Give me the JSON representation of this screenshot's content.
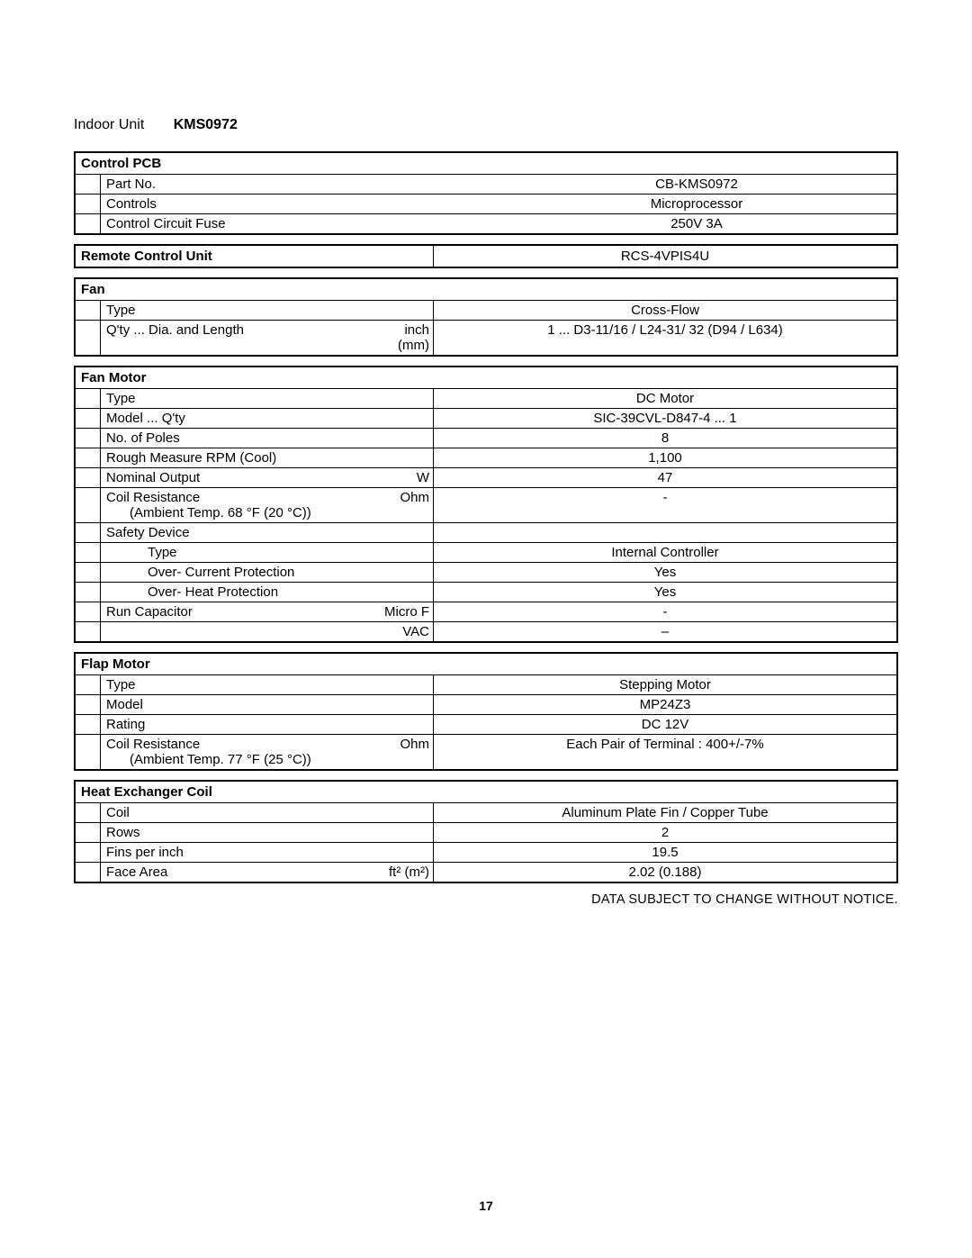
{
  "header": {
    "unit_label": "Indoor Unit",
    "model": "KMS0972"
  },
  "sections": {
    "control_pcb": {
      "title": "Control  PCB",
      "rows": [
        {
          "label": "Part No.",
          "unit": "",
          "value": "CB-KMS0972"
        },
        {
          "label": "Controls",
          "unit": "",
          "value": "Microprocessor"
        },
        {
          "label": "Control Circuit Fuse",
          "unit": "",
          "value": "250V 3A"
        }
      ]
    },
    "remote": {
      "title": "Remote  Control  Unit",
      "value": "RCS-4VPIS4U"
    },
    "fan": {
      "title": "Fan",
      "rows": [
        {
          "label": "Type",
          "unit": "",
          "value": "Cross-Flow"
        },
        {
          "label": "Q'ty ... Dia. and Length",
          "unit": "inch (mm)",
          "value": "1 ... D3-11/16 /  L24-31/ 32 (D94 / L634)"
        }
      ]
    },
    "fan_motor": {
      "title": "Fan  Motor",
      "rows": [
        {
          "label": "Type",
          "unit": "",
          "value": "DC Motor"
        },
        {
          "label": "Model ... Q'ty",
          "unit": "",
          "value": "SIC-39CVL-D847-4 ... 1"
        },
        {
          "label": "No. of Poles",
          "unit": "",
          "value": "8"
        },
        {
          "label": "Rough Measure RPM (Cool)",
          "unit": "",
          "value": "1,100"
        },
        {
          "label": "Nominal Output",
          "unit": "W",
          "value": "47"
        },
        {
          "label": "Coil Resistance",
          "sub": "(Ambient Temp. 68 °F (20 °C))",
          "unit": "Ohm",
          "value": "-"
        },
        {
          "label": "Safety Device",
          "unit": "",
          "value": ""
        },
        {
          "label": "Type",
          "indent": 2,
          "unit": "",
          "value": "Internal Controller"
        },
        {
          "label": "Over- Current Protection",
          "indent": 2,
          "unit": "",
          "value": "Yes"
        },
        {
          "label": "Over- Heat Protection",
          "indent": 2,
          "unit": "",
          "value": "Yes"
        },
        {
          "label": "Run Capacitor",
          "unit": "Micro F",
          "value": "-"
        },
        {
          "label": "",
          "unit": "VAC",
          "value": "–"
        }
      ]
    },
    "flap_motor": {
      "title": "Flap  Motor",
      "rows": [
        {
          "label": "Type",
          "unit": "",
          "value": "Stepping Motor"
        },
        {
          "label": "Model",
          "unit": "",
          "value": "MP24Z3"
        },
        {
          "label": "Rating",
          "unit": "",
          "value": "DC 12V"
        },
        {
          "label": "Coil Resistance",
          "sub": "(Ambient Temp. 77 °F (25 °C))",
          "unit": "Ohm",
          "value": "Each Pair of Terminal : 400+/-7%"
        }
      ]
    },
    "heat_exchanger": {
      "title": "Heat  Exchanger  Coil",
      "rows": [
        {
          "label": "Coil",
          "unit": "",
          "value": "Aluminum Plate Fin / Copper Tube"
        },
        {
          "label": "Rows",
          "unit": "",
          "value": "2"
        },
        {
          "label": "Fins per inch",
          "unit": "",
          "value": "19.5"
        },
        {
          "label": "Face Area",
          "unit": "ft² (m²)",
          "value": "2.02 (0.188)"
        }
      ]
    }
  },
  "footnote": "DATA SUBJECT TO CHANGE  WITHOUT NOTICE.",
  "page_number": "17",
  "colors": {
    "border": "#000000",
    "text": "#000000",
    "background": "#ffffff"
  },
  "typography": {
    "body_fontsize": 15,
    "header_fontsize": 16,
    "font_family": "Arial"
  }
}
